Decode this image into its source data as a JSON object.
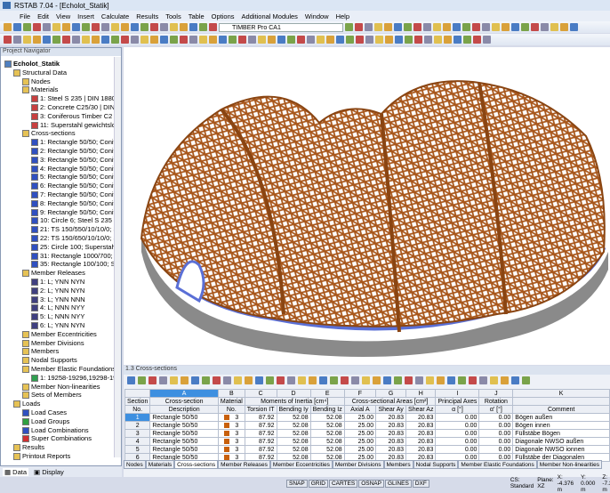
{
  "window": {
    "title": "RSTAB 7.04 - [Echolot_Statik]"
  },
  "menu": [
    "File",
    "Edit",
    "View",
    "Insert",
    "Calculate",
    "Results",
    "Tools",
    "Table",
    "Options",
    "Additional Modules",
    "Window",
    "Help"
  ],
  "toolbar": {
    "loadcase_select": "TIMBER Pro CA1"
  },
  "navigator": {
    "title": "Project Navigator",
    "items": [
      {
        "label": "Echolot_Statik",
        "level": 0,
        "bold": true,
        "icon": "project-icon"
      },
      {
        "label": "Structural Data",
        "level": 1,
        "icon": "folder-icon"
      },
      {
        "label": "Nodes",
        "level": 2,
        "icon": "folder-icon"
      },
      {
        "label": "Materials",
        "level": 2,
        "icon": "folder-icon"
      },
      {
        "label": "1: Steel S 235 | DIN 18800",
        "level": 3,
        "icon": "material-icon"
      },
      {
        "label": "2: Concrete C25/30 | DIN",
        "level": 3,
        "icon": "material-icon"
      },
      {
        "label": "3: Coniferous Timber C2",
        "level": 3,
        "icon": "material-icon"
      },
      {
        "label": "11: Superstahl gewichtslo",
        "level": 3,
        "icon": "material-icon"
      },
      {
        "label": "Cross-sections",
        "level": 2,
        "icon": "folder-icon"
      },
      {
        "label": "1: Rectangle 50/50; Conit",
        "level": 3,
        "icon": "section-icon"
      },
      {
        "label": "2: Rectangle 50/50; Conit",
        "level": 3,
        "icon": "section-icon"
      },
      {
        "label": "3: Rectangle 50/50; Conit",
        "level": 3,
        "icon": "section-icon"
      },
      {
        "label": "4: Rectangle 50/50; Conit",
        "level": 3,
        "icon": "section-icon"
      },
      {
        "label": "5: Rectangle 50/50; Conit",
        "level": 3,
        "icon": "section-icon"
      },
      {
        "label": "6: Rectangle 50/50; Conit",
        "level": 3,
        "icon": "section-icon"
      },
      {
        "label": "7: Rectangle 50/50; Conit",
        "level": 3,
        "icon": "section-icon"
      },
      {
        "label": "8: Rectangle 50/50; Conit",
        "level": 3,
        "icon": "section-icon"
      },
      {
        "label": "9: Rectangle 50/50; Conit",
        "level": 3,
        "icon": "section-icon"
      },
      {
        "label": "10: Circle 6; Steel S 235",
        "level": 3,
        "icon": "section-icon"
      },
      {
        "label": "21: TS 150/550/10/10/0; S",
        "level": 3,
        "icon": "section-icon"
      },
      {
        "label": "22: TS 150/650/10/10/0; S",
        "level": 3,
        "icon": "section-icon"
      },
      {
        "label": "25: Circle 100; Superstahl",
        "level": 3,
        "icon": "section-icon"
      },
      {
        "label": "31: Rectangle 1000/700; C",
        "level": 3,
        "icon": "section-icon"
      },
      {
        "label": "35: Rectangle 100/100; Su",
        "level": 3,
        "icon": "section-icon"
      },
      {
        "label": "Member Releases",
        "level": 2,
        "icon": "folder-icon"
      },
      {
        "label": "1: L; YNN NYN",
        "level": 3,
        "icon": "release-icon"
      },
      {
        "label": "2: L; YNN NYN",
        "level": 3,
        "icon": "release-icon"
      },
      {
        "label": "3: L; YNN NNN",
        "level": 3,
        "icon": "release-icon"
      },
      {
        "label": "4: L; NNN NYY",
        "level": 3,
        "icon": "release-icon"
      },
      {
        "label": "5: L; NNN NYY",
        "level": 3,
        "icon": "release-icon"
      },
      {
        "label": "6: L; YNN NYN",
        "level": 3,
        "icon": "release-icon"
      },
      {
        "label": "Member Eccentricities",
        "level": 2,
        "icon": "folder-icon"
      },
      {
        "label": "Member Divisions",
        "level": 2,
        "icon": "folder-icon"
      },
      {
        "label": "Members",
        "level": 2,
        "icon": "folder-icon"
      },
      {
        "label": "Nodal Supports",
        "level": 2,
        "icon": "folder-icon"
      },
      {
        "label": "Member Elastic Foundations",
        "level": 2,
        "icon": "folder-icon"
      },
      {
        "label": "1: 19258-19296,19298-193",
        "level": 3,
        "icon": "foundation-icon"
      },
      {
        "label": "Member Non-linearities",
        "level": 2,
        "icon": "folder-icon"
      },
      {
        "label": "Sets of Members",
        "level": 2,
        "icon": "folder-icon"
      },
      {
        "label": "Loads",
        "level": 1,
        "icon": "folder-icon"
      },
      {
        "label": "Load Cases",
        "level": 2,
        "icon": "load-case-icon"
      },
      {
        "label": "Load Groups",
        "level": 2,
        "icon": "load-group-icon"
      },
      {
        "label": "Load Combinations",
        "level": 2,
        "icon": "load-combination-icon"
      },
      {
        "label": "Super Combinations",
        "level": 2,
        "icon": "super-combination-icon"
      },
      {
        "label": "Results",
        "level": 1,
        "icon": "folder-icon"
      },
      {
        "label": "Printout Reports",
        "level": 1,
        "icon": "folder-icon"
      },
      {
        "label": "Guide Objects",
        "level": 1,
        "icon": "folder-icon"
      }
    ],
    "tabs": [
      "Data",
      "Display"
    ]
  },
  "table": {
    "title": "1.3 Cross-sections",
    "col_letters": [
      "A",
      "B",
      "C",
      "D",
      "E",
      "F",
      "G",
      "H",
      "I",
      "J",
      "K"
    ],
    "group_headers": {
      "section": "Section",
      "a": "Cross-section",
      "b": "Material",
      "cde": "Moments of Inertia [cm⁴]",
      "fgh": "Cross-sectional Areas [cm²]",
      "i": "Principal Axes",
      "j": "Rotation"
    },
    "sub_headers": {
      "section": "No.",
      "a": "Description",
      "b": "No.",
      "c": "Torsion IT",
      "d": "Bending Iy",
      "e": "Bending Iz",
      "f": "Axial A",
      "g": "Shear Ay",
      "h": "Shear Az",
      "i": "α [°]",
      "j": "α' [°]",
      "k": "Comment"
    },
    "material_color": "#c8600c",
    "rows": [
      [
        "1",
        "Rectangle 50/50",
        "3",
        "87.92",
        "52.08",
        "52.08",
        "25.00",
        "20.83",
        "20.83",
        "0.00",
        "0.00",
        "Bögen außen"
      ],
      [
        "2",
        "Rectangle 50/50",
        "3",
        "87.92",
        "52.08",
        "52.08",
        "25.00",
        "20.83",
        "20.83",
        "0.00",
        "0.00",
        "Bögen innen"
      ],
      [
        "3",
        "Rectangle 50/50",
        "3",
        "87.92",
        "52.08",
        "52.08",
        "25.00",
        "20.83",
        "20.83",
        "0.00",
        "0.00",
        "Füllstäbe Bögen"
      ],
      [
        "4",
        "Rectangle 50/50",
        "3",
        "87.92",
        "52.08",
        "52.08",
        "25.00",
        "20.83",
        "20.83",
        "0.00",
        "0.00",
        "Diagonale NWSO außen"
      ],
      [
        "5",
        "Rectangle 50/50",
        "3",
        "87.92",
        "52.08",
        "52.08",
        "25.00",
        "20.83",
        "20.83",
        "0.00",
        "0.00",
        "Diagonale NWSO ionnen"
      ],
      [
        "6",
        "Rectangle 50/50",
        "3",
        "87.92",
        "52.08",
        "52.08",
        "25.00",
        "20.83",
        "20.83",
        "0.00",
        "0.00",
        "Füllstäbe der Diagonalen"
      ]
    ],
    "tabs": [
      "Nodes",
      "Materials",
      "Cross-sections",
      "Member Releases",
      "Member Eccentricities",
      "Member Divisions",
      "Members",
      "Nodal Supports",
      "Member Elastic Foundations",
      "Member Non-linearities"
    ],
    "active_tab": "Cross-sections"
  },
  "status": {
    "toggles": [
      "SNAP",
      "GRID",
      "CARTES",
      "OSNAP",
      "GLINES",
      "DXF"
    ],
    "cs": "CS: Standard",
    "plane": "Plane: XZ",
    "x": "X: -4.376 m",
    "y": "Y: 0.000 m",
    "z": "Z: -7.323 m"
  },
  "colors": {
    "timber": "#a8561a",
    "support": "#5a6fd6",
    "base": "#8a8a8a"
  }
}
